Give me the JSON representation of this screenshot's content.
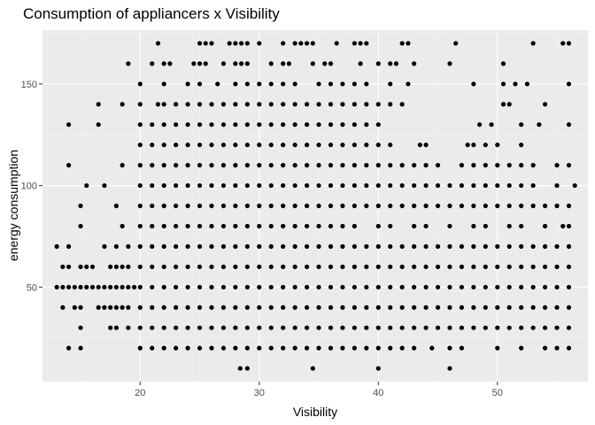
{
  "chart_data": {
    "type": "scatter",
    "title": "Consumption of appliancers x Visibility",
    "xlabel": "Visibility",
    "ylabel": "energy consumption",
    "xlim": [
      11.8,
      57.6
    ],
    "ylim": [
      3.5,
      176.5
    ],
    "x_ticks": [
      20,
      30,
      40,
      50
    ],
    "y_ticks": [
      50,
      100,
      150
    ],
    "grid": true,
    "legend": "none",
    "colors": {
      "panel": "#ebebeb",
      "grid_major": "#ffffff",
      "grid_minor": "#f5f5f5",
      "point": "#000000"
    },
    "dense_x_range": [
      20,
      56.5
    ],
    "series": [
      {
        "y": 10,
        "x": [
          28.4,
          29,
          34.5,
          40,
          46
        ]
      },
      {
        "y": 20,
        "x": [
          14,
          15,
          20,
          21,
          22,
          23,
          24,
          25,
          26,
          27,
          28,
          29,
          30,
          31,
          32,
          33,
          34,
          35,
          36,
          37,
          38,
          39,
          40,
          41,
          42,
          43,
          44.5,
          46,
          47,
          50,
          52,
          54,
          55,
          56
        ]
      },
      {
        "y": 30,
        "x": [
          15,
          17.5,
          18,
          19,
          20,
          21,
          22,
          23,
          24,
          25,
          26,
          27,
          28,
          29,
          30,
          31,
          32,
          33,
          34,
          35,
          36,
          37,
          38,
          39,
          40,
          41,
          42,
          43,
          44,
          45,
          46,
          47,
          48,
          49,
          50,
          51,
          52,
          53,
          54,
          55,
          56
        ]
      },
      {
        "y": 40,
        "x": [
          13.5,
          14.5,
          15,
          16.5,
          17,
          17.5,
          18,
          18.5,
          19,
          20,
          21,
          22,
          23,
          24,
          25,
          26,
          27,
          28,
          29,
          30,
          31,
          32,
          33,
          34,
          35,
          36,
          37,
          38,
          39,
          40,
          41,
          42,
          43,
          44,
          45,
          46,
          47,
          48,
          49,
          50,
          51,
          52,
          53,
          54,
          55,
          56
        ]
      },
      {
        "y": 50,
        "x": [
          13,
          13.5,
          14,
          14.5,
          15,
          15.5,
          16,
          16.5,
          17,
          17.5,
          18,
          18.5,
          19,
          19.5,
          20,
          21,
          22,
          23,
          24,
          25,
          26,
          27,
          28,
          29,
          30,
          31,
          32,
          33,
          34,
          35,
          36,
          37,
          38,
          39,
          40,
          41,
          42,
          43,
          44,
          45,
          46,
          47,
          48,
          49,
          50,
          51,
          52,
          53,
          54,
          55,
          56
        ]
      },
      {
        "y": 60,
        "x": [
          13.5,
          14,
          15,
          15.5,
          16,
          17.5,
          18,
          18.5,
          19,
          20,
          21,
          22,
          23,
          24,
          25,
          26,
          27,
          28,
          29,
          30,
          31,
          32,
          33,
          34,
          35,
          36,
          37,
          38,
          39,
          40,
          41,
          42,
          43,
          44,
          45,
          46,
          47,
          48,
          49,
          50,
          51,
          52,
          53,
          54,
          55,
          56
        ]
      },
      {
        "y": 70,
        "x": [
          13,
          14,
          17,
          18,
          19,
          20,
          21,
          22,
          23,
          24,
          25,
          26,
          27,
          28,
          29,
          30,
          31,
          32,
          33,
          34,
          35,
          36,
          37,
          38,
          39,
          40,
          41,
          42,
          43,
          44,
          45,
          46,
          47,
          48,
          49,
          50,
          51,
          52,
          53,
          54,
          55,
          56
        ]
      },
      {
        "y": 80,
        "x": [
          15,
          18.5,
          20,
          21,
          22,
          23,
          24,
          25,
          26,
          27,
          28,
          29,
          30,
          31,
          32,
          33,
          34,
          35,
          36,
          37,
          38,
          40,
          41,
          43,
          44,
          46,
          48,
          49,
          51,
          52,
          54,
          55.5,
          56
        ]
      },
      {
        "y": 90,
        "x": [
          15,
          18,
          20,
          21,
          22,
          23,
          24,
          25,
          26,
          27,
          28,
          29,
          30,
          31,
          32,
          33,
          34,
          35,
          36,
          37,
          38,
          39,
          40,
          41,
          42,
          43,
          44,
          45,
          46,
          47,
          48,
          49,
          50,
          51,
          52,
          53,
          54,
          55,
          56
        ]
      },
      {
        "y": 100,
        "x": [
          15.5,
          17,
          20,
          21,
          22,
          23,
          24,
          25,
          26,
          27,
          28,
          29,
          30,
          31,
          32,
          33,
          34,
          35,
          36,
          37,
          38,
          39,
          40,
          41,
          42,
          43,
          44,
          45,
          46,
          47,
          48,
          49,
          50,
          51,
          52,
          53,
          55,
          56.5
        ]
      },
      {
        "y": 110,
        "x": [
          14,
          18.5,
          20,
          21,
          22,
          23,
          24,
          25,
          26,
          27,
          28,
          29,
          30,
          31,
          32,
          33,
          34,
          35,
          36,
          37,
          38,
          39,
          40,
          41,
          42,
          43,
          44,
          45,
          47,
          48,
          49,
          50,
          51,
          52,
          53,
          55,
          56
        ]
      },
      {
        "y": 120,
        "x": [
          20,
          21,
          22,
          23,
          24,
          25,
          26,
          27,
          28,
          29,
          30,
          31,
          32,
          33,
          34,
          35,
          36,
          37,
          38,
          39,
          40,
          41,
          43.5,
          44,
          47.5,
          48,
          49,
          50,
          52
        ]
      },
      {
        "y": 130,
        "x": [
          14,
          16.5,
          20,
          21,
          22,
          23,
          24,
          25,
          26,
          27,
          28,
          29,
          30,
          31,
          32,
          33,
          34,
          35,
          36,
          37,
          38,
          39,
          40,
          48.5,
          49.5,
          52,
          53.5,
          56
        ]
      },
      {
        "y": 140,
        "x": [
          16.5,
          18.5,
          20,
          21.5,
          22,
          23,
          24,
          25,
          26,
          27,
          28,
          29,
          30,
          31,
          32,
          33,
          34,
          35,
          36,
          37,
          38,
          39,
          40,
          41,
          42,
          50.5,
          51,
          54
        ]
      },
      {
        "y": 150,
        "x": [
          20,
          22,
          24,
          25,
          26.5,
          28,
          29,
          30,
          31,
          32,
          33,
          35,
          36,
          37,
          38,
          39,
          41,
          42.5,
          48,
          50.5,
          51.5,
          52.5,
          56
        ]
      },
      {
        "y": 160,
        "x": [
          19,
          21,
          22,
          22.5,
          24.5,
          25,
          25.5,
          27,
          28,
          28.5,
          29,
          31,
          32,
          32.5,
          34.5,
          35.5,
          36,
          38.5,
          40,
          41,
          41.5,
          43,
          46,
          50.5
        ]
      },
      {
        "y": 170,
        "x": [
          21.5,
          25,
          25.5,
          26,
          27.5,
          28,
          28.5,
          29,
          30,
          32,
          33,
          33.5,
          34,
          34.5,
          36.5,
          38,
          38.5,
          39,
          42,
          42.5,
          46.5,
          53,
          55.5,
          56
        ]
      }
    ]
  }
}
